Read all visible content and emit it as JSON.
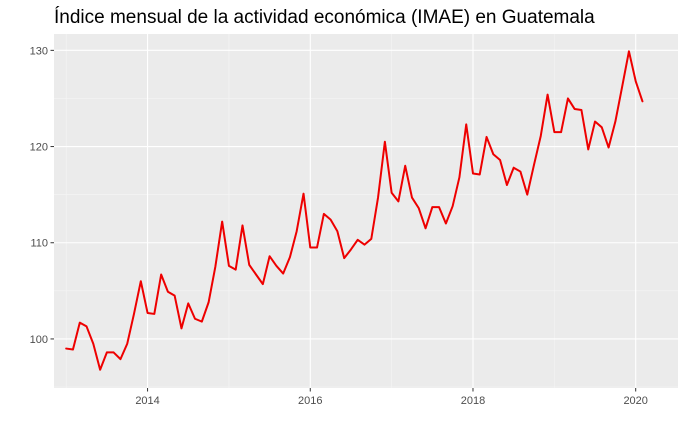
{
  "chart_data": {
    "type": "line",
    "title": "Índice mensual de la actividad económica (IMAE) en Guatemala",
    "xlabel": "",
    "ylabel": "",
    "xlim": [
      2012.85,
      2020.52
    ],
    "ylim": [
      94.9,
      131.7
    ],
    "x_ticks": [
      2014,
      2016,
      2018,
      2020
    ],
    "y_ticks": [
      100,
      110,
      120,
      130
    ],
    "grid": true,
    "legend": "none",
    "series": [
      {
        "name": "IMAE",
        "color": "#ee0000",
        "x": [
          2013.0,
          2013.083,
          2013.167,
          2013.25,
          2013.333,
          2013.417,
          2013.5,
          2013.583,
          2013.667,
          2013.75,
          2013.833,
          2013.917,
          2014.0,
          2014.083,
          2014.167,
          2014.25,
          2014.333,
          2014.417,
          2014.5,
          2014.583,
          2014.667,
          2014.75,
          2014.833,
          2014.917,
          2015.0,
          2015.083,
          2015.167,
          2015.25,
          2015.333,
          2015.417,
          2015.5,
          2015.583,
          2015.667,
          2015.75,
          2015.833,
          2015.917,
          2016.0,
          2016.083,
          2016.167,
          2016.25,
          2016.333,
          2016.417,
          2016.5,
          2016.583,
          2016.667,
          2016.75,
          2016.833,
          2016.917,
          2017.0,
          2017.083,
          2017.167,
          2017.25,
          2017.333,
          2017.417,
          2017.5,
          2017.583,
          2017.667,
          2017.75,
          2017.833,
          2017.917,
          2018.0,
          2018.083,
          2018.167,
          2018.25,
          2018.333,
          2018.417,
          2018.5,
          2018.583,
          2018.667,
          2018.75,
          2018.833,
          2018.917,
          2019.0,
          2019.083,
          2019.167,
          2019.25,
          2019.333,
          2019.417,
          2019.5,
          2019.583,
          2019.667,
          2019.75,
          2019.833,
          2019.917,
          2020.0,
          2020.083
        ],
        "values": [
          99.0,
          98.9,
          101.7,
          101.3,
          99.5,
          96.8,
          98.6,
          98.6,
          97.9,
          99.5,
          102.6,
          106.0,
          102.7,
          102.6,
          106.7,
          104.9,
          104.5,
          101.1,
          103.7,
          102.1,
          101.8,
          103.8,
          107.5,
          112.2,
          107.6,
          107.2,
          111.8,
          107.7,
          106.7,
          105.7,
          108.6,
          107.6,
          106.8,
          108.5,
          111.2,
          115.1,
          109.5,
          109.5,
          113.0,
          112.4,
          111.2,
          108.4,
          109.3,
          110.3,
          109.8,
          110.4,
          114.7,
          120.5,
          115.2,
          114.3,
          118.0,
          114.7,
          113.6,
          111.5,
          113.7,
          113.7,
          112.0,
          113.8,
          116.8,
          122.3,
          117.2,
          117.1,
          121.0,
          119.2,
          118.6,
          116.0,
          117.8,
          117.4,
          115.0,
          118.1,
          121.1,
          125.4,
          121.5,
          121.5,
          125.0,
          123.9,
          123.8,
          119.7,
          122.6,
          122.0,
          119.9,
          122.6,
          126.2,
          129.9,
          126.8,
          124.7
        ]
      }
    ]
  }
}
